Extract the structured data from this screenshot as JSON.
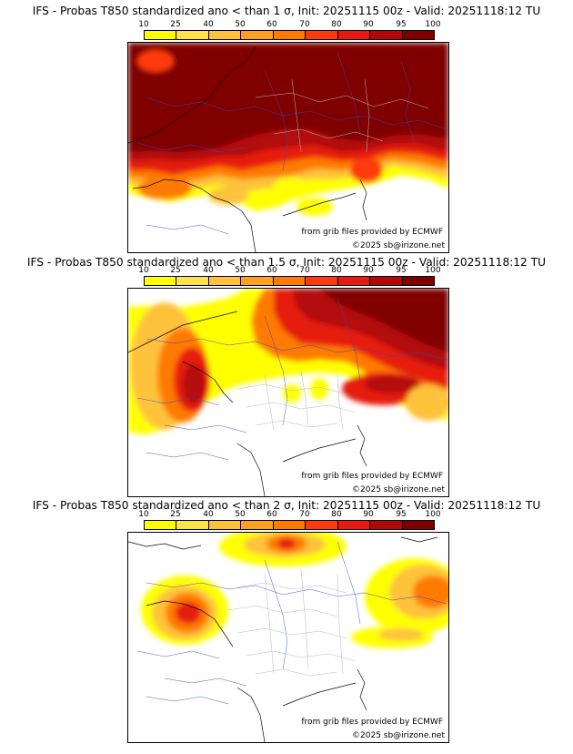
{
  "panels": [
    {
      "title": "IFS - Probas T850  standardized ano < than 1 σ, Init: 20251115 00z - Valid: 20251118:12 TU",
      "credit": "from grib files provided by ECMWF",
      "copyright": "©2025 sb@irizone.net"
    },
    {
      "title": "IFS - Probas T850  standardized ano < than 1.5 σ, Init: 20251115 00z - Valid: 20251118:12 TU",
      "credit": "from grib files provided by ECMWF",
      "copyright": "©2025 sb@irizone.net"
    },
    {
      "title": "IFS - Probas T850  standardized ano < than 2 σ, Init: 20251115 00z - Valid: 20251118:12 TU",
      "credit": "from grib files provided by ECMWF",
      "copyright": "©2025 sb@irizone.net"
    }
  ],
  "colorbar": {
    "ticks": [
      "10",
      "25",
      "40",
      "50",
      "60",
      "70",
      "80",
      "90",
      "95",
      "100"
    ],
    "colors": [
      "#ffff00",
      "#ffe14a",
      "#ffc23a",
      "#ffa020",
      "#ff7a00",
      "#ff3a10",
      "#e61a10",
      "#b30808",
      "#800000"
    ]
  }
}
